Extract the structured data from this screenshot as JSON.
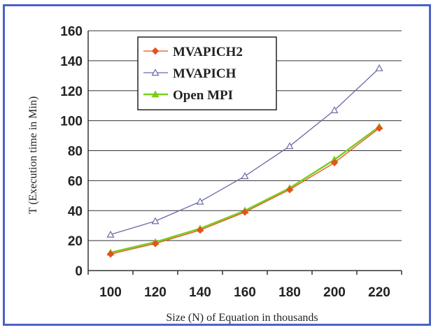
{
  "chart_data": {
    "type": "line",
    "xlabel": "Size (N) of Equation in thousands",
    "ylabel": "T (Execution time in Min)",
    "x": [
      100,
      120,
      140,
      160,
      180,
      200,
      220
    ],
    "xticks": [
      "100",
      "120",
      "140",
      "160",
      "180",
      "200",
      "220"
    ],
    "yticks": [
      "0",
      "20",
      "40",
      "60",
      "80",
      "100",
      "120",
      "140",
      "160"
    ],
    "ylim": [
      0,
      160
    ],
    "grid": "horizontal",
    "legend_position": "top-left",
    "series": [
      {
        "name": "MVAPICH2",
        "color": "#e8501e",
        "marker": "diamond",
        "values": [
          11,
          18,
          27,
          39,
          54,
          72,
          95
        ]
      },
      {
        "name": "MVAPICH",
        "color": "#6a6aa8",
        "marker": "triangle",
        "values": [
          24,
          33,
          46,
          63,
          83,
          107,
          135
        ]
      },
      {
        "name": "Open MPI",
        "color": "#7acc1e",
        "marker": "triangle",
        "values": [
          12,
          19,
          28,
          40,
          55,
          74,
          96
        ]
      }
    ]
  }
}
